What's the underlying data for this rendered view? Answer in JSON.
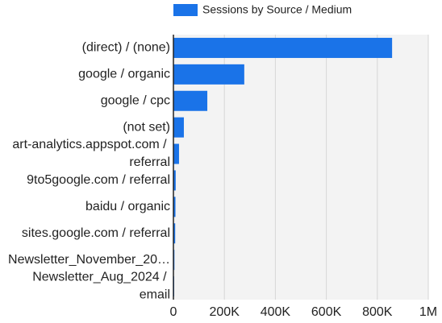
{
  "chart_data": {
    "type": "hbar",
    "legend": "Sessions by Source / Medium",
    "color": "#1a73e8",
    "categories": [
      "(direct) / (none)",
      "google / organic",
      "google / cpc",
      "(not set)",
      "art-analytics.appspot.com / referral",
      "9to5google.com / referral",
      "baidu / organic",
      "sites.google.com / referral",
      "Newsletter_November_20…",
      "Newsletter_Aug_2024 / email"
    ],
    "values": [
      858000,
      278000,
      133000,
      41000,
      22000,
      9000,
      8000,
      7000,
      4000,
      3000
    ],
    "xlim": [
      0,
      1000000
    ],
    "xticks": [
      0,
      {
        "value": 200000,
        "label": "200K"
      },
      {
        "value": 400000,
        "label": "400K"
      },
      {
        "value": 600000,
        "label": "600K"
      },
      {
        "value": 800000,
        "label": "800K"
      },
      {
        "value": 1000000,
        "label": "1M"
      }
    ],
    "grid": true
  }
}
